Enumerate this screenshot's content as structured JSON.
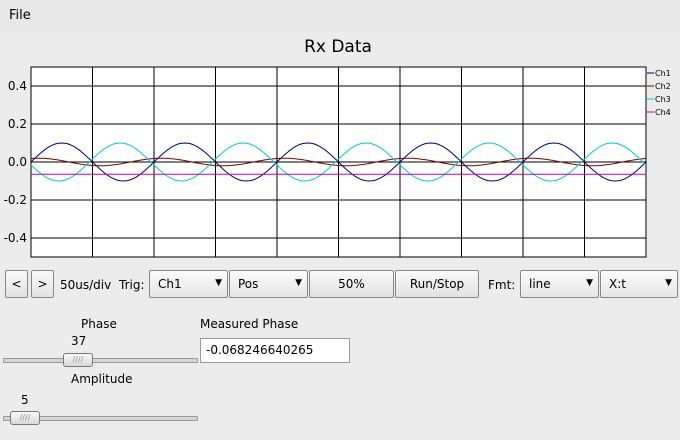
{
  "menu": {
    "file_label": "File"
  },
  "chart_data": {
    "type": "line",
    "title": "Rx Data",
    "xlabel": "",
    "ylabel": "",
    "ylim": [
      -0.5,
      0.5
    ],
    "y_ticks": [
      "0.4",
      "0.2",
      "0.0",
      "-0.2",
      "-0.4"
    ],
    "y_tick_values": [
      0.4,
      0.2,
      0.0,
      -0.2,
      -0.4
    ],
    "x_divisions": 10,
    "grid": true,
    "legend_position": "right",
    "series": [
      {
        "name": "Ch1",
        "color": "#00007f",
        "amplitude": 0.1,
        "cycles": 5,
        "phase": 0
      },
      {
        "name": "Ch2",
        "color": "#7f0000",
        "amplitude": 0.02,
        "cycles": 5,
        "phase": 1.2
      },
      {
        "name": "Ch3",
        "color": "#00cccc",
        "amplitude": 0.1,
        "cycles": 5,
        "phase": 3.3
      },
      {
        "name": "Ch4",
        "color": "#bf00bf",
        "amplitude": 0.0,
        "cycles": 5,
        "phase": 0,
        "offset": -0.065
      }
    ]
  },
  "controls": {
    "prev_label": "<",
    "next_label": ">",
    "timebase": "50us/div",
    "trig_label": "Trig:",
    "trig_channel": "Ch1",
    "trig_slope": "Pos",
    "level_label": "50%",
    "runstop_label": "Run/Stop",
    "fmt_label": "Fmt:",
    "fmt_value": "line",
    "mode_value": "X:t"
  },
  "phase": {
    "label": "Phase",
    "value": "37",
    "fraction": 0.37
  },
  "amplitude": {
    "label": "Amplitude",
    "value": "5",
    "fraction": 0.05
  },
  "measured": {
    "label": "Measured Phase",
    "value": "-0.068246640265"
  },
  "icons": {
    "dropdown": "chevron-down-icon",
    "slider_grip": "grip-icon"
  }
}
